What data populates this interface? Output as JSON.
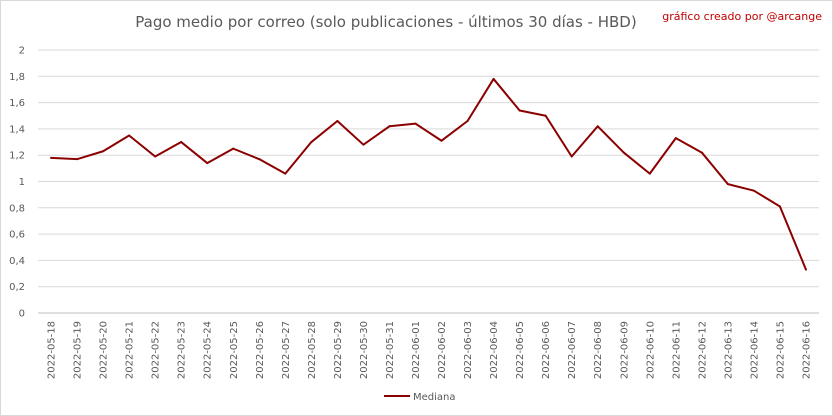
{
  "chart_data": {
    "type": "line",
    "title": "Pago medio por correo (solo publicaciones - últimos 30 días - HBD)",
    "credit": "gráfico creado por @arcange",
    "xlabel": "",
    "ylabel": "",
    "ylim": [
      0,
      2
    ],
    "yticks": [
      "0",
      "0,2",
      "0,4",
      "0,6",
      "0,8",
      "1",
      "1,2",
      "1,4",
      "1,6",
      "1,8",
      "2"
    ],
    "grid": true,
    "legend_position": "bottom",
    "colors": {
      "line": "#8b0000",
      "grid": "#d9d9d9"
    },
    "categories": [
      "2022-05-18",
      "2022-05-19",
      "2022-05-20",
      "2022-05-21",
      "2022-05-22",
      "2022-05-23",
      "2022-05-24",
      "2022-05-25",
      "2022-05-26",
      "2022-05-27",
      "2022-05-28",
      "2022-05-29",
      "2022-05-30",
      "2022-05-31",
      "2022-06-01",
      "2022-06-02",
      "2022-06-03",
      "2022-06-04",
      "2022-06-05",
      "2022-06-06",
      "2022-06-07",
      "2022-06-08",
      "2022-06-09",
      "2022-06-10",
      "2022-06-11",
      "2022-06-12",
      "2022-06-13",
      "2022-06-14",
      "2022-06-15",
      "2022-06-16"
    ],
    "series": [
      {
        "name": "Mediana",
        "values": [
          1.18,
          1.17,
          1.23,
          1.35,
          1.19,
          1.3,
          1.14,
          1.25,
          1.17,
          1.06,
          1.3,
          1.46,
          1.28,
          1.42,
          1.44,
          1.31,
          1.46,
          1.78,
          1.54,
          1.5,
          1.19,
          1.42,
          1.22,
          1.06,
          1.33,
          1.22,
          0.98,
          0.93,
          0.81,
          0.33
        ]
      }
    ]
  }
}
